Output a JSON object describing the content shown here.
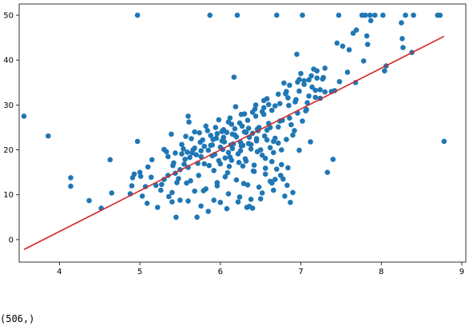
{
  "output": {
    "text": "(506,)"
  },
  "chart_data": {
    "type": "scatter",
    "xlim": [
      3.5,
      9.05
    ],
    "ylim": [
      -5,
      52.5
    ],
    "xticks": [
      4,
      5,
      6,
      7,
      8,
      9
    ],
    "yticks": [
      0,
      10,
      20,
      30,
      40,
      50
    ],
    "grid": false,
    "colors": {
      "points": "#1f77b4",
      "fit_line": "#d62728"
    },
    "fit_line": {
      "x": [
        3.56,
        8.78
      ],
      "y": [
        -2.2,
        45.3
      ]
    },
    "series": [
      {
        "values": [
          [
            3.56,
            27.5
          ],
          [
            3.86,
            23.1
          ],
          [
            4.14,
            13.8
          ],
          [
            4.14,
            11.9
          ],
          [
            4.37,
            8.7
          ],
          [
            4.52,
            7.0
          ],
          [
            4.63,
            17.8
          ],
          [
            4.65,
            10.4
          ],
          [
            4.88,
            10.2
          ],
          [
            4.9,
            12.0
          ],
          [
            4.91,
            13.8
          ],
          [
            4.93,
            14.6
          ],
          [
            4.97,
            50.0
          ],
          [
            4.97,
            21.9
          ],
          [
            5.0,
            15.0
          ],
          [
            5.01,
            14.1
          ],
          [
            5.03,
            9.7
          ],
          [
            5.07,
            11.8
          ],
          [
            5.09,
            8.1
          ],
          [
            5.1,
            16.2
          ],
          [
            5.15,
            17.8
          ],
          [
            5.22,
            7.2
          ],
          [
            5.27,
            12.3
          ],
          [
            5.3,
            20.1
          ],
          [
            5.33,
            19.6
          ],
          [
            5.35,
            18.5
          ],
          [
            5.35,
            14.3
          ],
          [
            5.39,
            23.5
          ],
          [
            5.4,
            8.4
          ],
          [
            5.41,
            16.5
          ],
          [
            5.44,
            14.8
          ],
          [
            5.45,
            5.0
          ],
          [
            5.5,
            8.8
          ],
          [
            5.52,
            19.1
          ],
          [
            5.56,
            17.9
          ],
          [
            5.57,
            23.0
          ],
          [
            5.59,
            19.5
          ],
          [
            5.6,
            27.5
          ],
          [
            5.61,
            26.2
          ],
          [
            5.63,
            13.1
          ],
          [
            5.68,
            20.4
          ],
          [
            5.71,
            5.0
          ],
          [
            5.73,
            14.3
          ],
          [
            5.76,
            19.8
          ],
          [
            5.79,
            10.9
          ],
          [
            5.8,
            16.9
          ],
          [
            5.85,
            6.3
          ],
          [
            5.87,
            50.0
          ],
          [
            5.88,
            21.0
          ],
          [
            5.91,
            22.3
          ],
          [
            5.93,
            19.0
          ],
          [
            5.96,
            12.7
          ],
          [
            6.0,
            8.3
          ],
          [
            6.02,
            24.1
          ],
          [
            6.03,
            20.1
          ],
          [
            6.06,
            18.2
          ],
          [
            6.09,
            14.9
          ],
          [
            6.11,
            16.3
          ],
          [
            6.13,
            21.1
          ],
          [
            6.15,
            23.5
          ],
          [
            6.17,
            36.2
          ],
          [
            6.19,
            29.6
          ],
          [
            6.21,
            50.0
          ],
          [
            6.23,
            17.2
          ],
          [
            6.25,
            21.7
          ],
          [
            6.27,
            25.3
          ],
          [
            6.29,
            12.5
          ],
          [
            6.31,
            18.0
          ],
          [
            6.33,
            7.2
          ],
          [
            6.35,
            24.8
          ],
          [
            6.38,
            21.2
          ],
          [
            6.4,
            7.0
          ],
          [
            6.41,
            15.3
          ],
          [
            6.43,
            29.1
          ],
          [
            6.45,
            22.5
          ],
          [
            6.47,
            24.3
          ],
          [
            6.5,
            20.0
          ],
          [
            6.52,
            28.5
          ],
          [
            6.54,
            31.0
          ],
          [
            6.56,
            15.9
          ],
          [
            6.58,
            22.2
          ],
          [
            6.6,
            30.1
          ],
          [
            6.62,
            25.0
          ],
          [
            6.64,
            17.4
          ],
          [
            6.66,
            21.9
          ],
          [
            6.68,
            13.4
          ],
          [
            6.7,
            50.0
          ],
          [
            6.72,
            25.1
          ],
          [
            6.75,
            14.3
          ],
          [
            6.77,
            26.6
          ],
          [
            6.79,
            34.9
          ],
          [
            6.81,
            32.5
          ],
          [
            6.83,
            12.1
          ],
          [
            6.85,
            29.9
          ],
          [
            6.87,
            8.3
          ],
          [
            6.9,
            23.3
          ],
          [
            6.93,
            30.7
          ],
          [
            6.95,
            41.3
          ],
          [
            6.98,
            33.1
          ],
          [
            7.0,
            37.0
          ],
          [
            7.02,
            50.0
          ],
          [
            7.04,
            35.4
          ],
          [
            7.07,
            29.0
          ],
          [
            7.1,
            32.0
          ],
          [
            7.13,
            36.5
          ],
          [
            7.16,
            38.0
          ],
          [
            7.18,
            33.3
          ],
          [
            7.2,
            36.0
          ],
          [
            7.24,
            31.5
          ],
          [
            7.27,
            35.8
          ],
          [
            7.3,
            32.9
          ],
          [
            7.33,
            15.0
          ],
          [
            7.4,
            17.9
          ],
          [
            7.42,
            33.2
          ],
          [
            7.45,
            43.8
          ],
          [
            7.47,
            50.0
          ],
          [
            7.52,
            43.1
          ],
          [
            7.6,
            42.3
          ],
          [
            7.65,
            46.0
          ],
          [
            7.69,
            46.7
          ],
          [
            7.76,
            50.0
          ],
          [
            7.8,
            50.0
          ],
          [
            7.82,
            45.4
          ],
          [
            7.83,
            43.5
          ],
          [
            7.86,
            50.0
          ],
          [
            7.87,
            48.8
          ],
          [
            7.92,
            50.0
          ],
          [
            8.02,
            50.0
          ],
          [
            8.04,
            37.6
          ],
          [
            8.06,
            38.7
          ],
          [
            8.25,
            48.3
          ],
          [
            8.26,
            44.8
          ],
          [
            8.27,
            42.8
          ],
          [
            8.3,
            50.0
          ],
          [
            8.38,
            41.7
          ],
          [
            8.4,
            50.0
          ],
          [
            8.7,
            50.0
          ],
          [
            8.73,
            50.0
          ],
          [
            8.78,
            21.9
          ],
          [
            5.95,
            22.6
          ],
          [
            6.05,
            21.8
          ],
          [
            6.2,
            22.9
          ],
          [
            6.3,
            24.0
          ],
          [
            6.4,
            23.7
          ],
          [
            6.1,
            19.4
          ],
          [
            5.9,
            18.7
          ],
          [
            6.0,
            20.6
          ],
          [
            6.15,
            20.3
          ],
          [
            6.25,
            19.8
          ],
          [
            6.35,
            21.4
          ],
          [
            6.45,
            22.0
          ],
          [
            6.55,
            23.1
          ],
          [
            5.8,
            20.8
          ],
          [
            5.7,
            18.9
          ],
          [
            5.85,
            19.9
          ],
          [
            6.08,
            23.9
          ],
          [
            6.18,
            24.7
          ],
          [
            6.28,
            21.0
          ],
          [
            6.38,
            20.2
          ],
          [
            6.48,
            25.0
          ],
          [
            6.58,
            24.4
          ],
          [
            6.68,
            22.6
          ],
          [
            5.75,
            21.7
          ],
          [
            5.65,
            19.3
          ],
          [
            5.98,
            17.6
          ],
          [
            6.12,
            18.4
          ],
          [
            6.22,
            19.1
          ],
          [
            6.32,
            17.5
          ],
          [
            6.42,
            16.6
          ],
          [
            6.52,
            18.8
          ],
          [
            6.62,
            20.5
          ],
          [
            6.72,
            21.5
          ],
          [
            6.82,
            22.3
          ],
          [
            6.92,
            24.3
          ],
          [
            7.02,
            26.4
          ],
          [
            5.55,
            16.8
          ],
          [
            5.62,
            18.3
          ],
          [
            5.78,
            22.2
          ],
          [
            5.88,
            23.2
          ],
          [
            6.02,
            22.0
          ],
          [
            6.16,
            21.3
          ],
          [
            6.26,
            20.9
          ],
          [
            6.36,
            22.8
          ],
          [
            6.46,
            19.6
          ],
          [
            6.56,
            18.1
          ],
          [
            6.66,
            19.4
          ],
          [
            6.76,
            20.0
          ],
          [
            6.86,
            27.1
          ],
          [
            6.96,
            28.2
          ],
          [
            7.06,
            28.7
          ],
          [
            5.92,
            15.4
          ],
          [
            6.06,
            14.0
          ],
          [
            6.2,
            13.3
          ],
          [
            6.34,
            12.2
          ],
          [
            6.48,
            11.7
          ],
          [
            6.62,
            13.0
          ],
          [
            6.76,
            16.7
          ],
          [
            5.48,
            13.6
          ],
          [
            5.58,
            12.6
          ],
          [
            5.68,
            10.8
          ],
          [
            5.82,
            11.3
          ],
          [
            5.96,
            12.0
          ],
          [
            6.1,
            10.2
          ],
          [
            6.24,
            9.5
          ],
          [
            6.38,
            9.0
          ],
          [
            6.52,
            10.4
          ],
          [
            6.66,
            11.0
          ],
          [
            6.8,
            9.7
          ],
          [
            5.52,
            21.2
          ],
          [
            5.64,
            22.5
          ],
          [
            5.74,
            23.8
          ],
          [
            5.84,
            24.3
          ],
          [
            5.94,
            25.0
          ],
          [
            6.04,
            24.5
          ],
          [
            6.14,
            25.7
          ],
          [
            6.24,
            26.0
          ],
          [
            6.34,
            26.6
          ],
          [
            6.44,
            27.5
          ],
          [
            6.54,
            27.9
          ],
          [
            6.64,
            28.8
          ],
          [
            6.74,
            30.3
          ],
          [
            6.84,
            31.6
          ],
          [
            6.94,
            31.2
          ],
          [
            7.04,
            34.6
          ],
          [
            7.14,
            34.0
          ],
          [
            7.24,
            33.4
          ],
          [
            5.42,
            17.1
          ],
          [
            5.5,
            15.6
          ],
          [
            5.6,
            16.1
          ],
          [
            5.72,
            17.0
          ],
          [
            5.86,
            16.5
          ],
          [
            6.0,
            16.9
          ],
          [
            6.14,
            17.7
          ],
          [
            6.28,
            16.4
          ],
          [
            6.42,
            15.2
          ],
          [
            6.56,
            14.6
          ],
          [
            6.7,
            15.7
          ],
          [
            6.84,
            16.0
          ],
          [
            6.98,
            19.9
          ],
          [
            7.12,
            21.8
          ],
          [
            5.66,
            20.0
          ],
          [
            5.76,
            18.5
          ],
          [
            5.9,
            21.1
          ],
          [
            6.04,
            22.8
          ],
          [
            6.18,
            23.3
          ],
          [
            6.32,
            23.9
          ],
          [
            6.46,
            24.6
          ],
          [
            6.6,
            25.9
          ],
          [
            6.74,
            26.4
          ],
          [
            6.88,
            25.6
          ],
          [
            7.08,
            30.5
          ],
          [
            7.18,
            31.7
          ],
          [
            7.28,
            36.1
          ],
          [
            7.38,
            33.0
          ],
          [
            7.48,
            35.2
          ],
          [
            7.58,
            37.3
          ],
          [
            7.68,
            35.0
          ],
          [
            7.78,
            39.8
          ],
          [
            5.3,
            13.4
          ],
          [
            5.4,
            10.5
          ],
          [
            5.46,
            12.7
          ],
          [
            5.6,
            8.6
          ],
          [
            5.76,
            7.5
          ],
          [
            5.92,
            8.8
          ],
          [
            6.08,
            6.9
          ],
          [
            6.22,
            8.4
          ],
          [
            6.36,
            7.4
          ],
          [
            6.5,
            9.1
          ],
          [
            6.64,
            12.6
          ],
          [
            6.78,
            13.5
          ],
          [
            6.9,
            10.5
          ],
          [
            5.98,
            26.7
          ],
          [
            6.12,
            27.1
          ],
          [
            6.26,
            27.9
          ],
          [
            6.4,
            28.4
          ],
          [
            6.54,
            29.4
          ],
          [
            6.68,
            29.8
          ],
          [
            6.82,
            33.0
          ],
          [
            6.96,
            35.1
          ],
          [
            7.1,
            35.6
          ],
          [
            7.2,
            37.6
          ],
          [
            7.3,
            38.2
          ],
          [
            5.2,
            12.1
          ],
          [
            5.14,
            13.9
          ],
          [
            5.26,
            11.0
          ],
          [
            5.36,
            9.6
          ],
          [
            5.44,
            19.3
          ],
          [
            5.54,
            20.2
          ],
          [
            5.68,
            24.0
          ],
          [
            5.82,
            25.3
          ],
          [
            5.96,
            23.6
          ],
          [
            6.1,
            26.2
          ],
          [
            6.3,
            28.0
          ],
          [
            6.44,
            30.0
          ],
          [
            6.58,
            31.4
          ],
          [
            6.72,
            32.4
          ],
          [
            6.86,
            34.4
          ],
          [
            6.98,
            35.7
          ]
        ]
      }
    ]
  }
}
